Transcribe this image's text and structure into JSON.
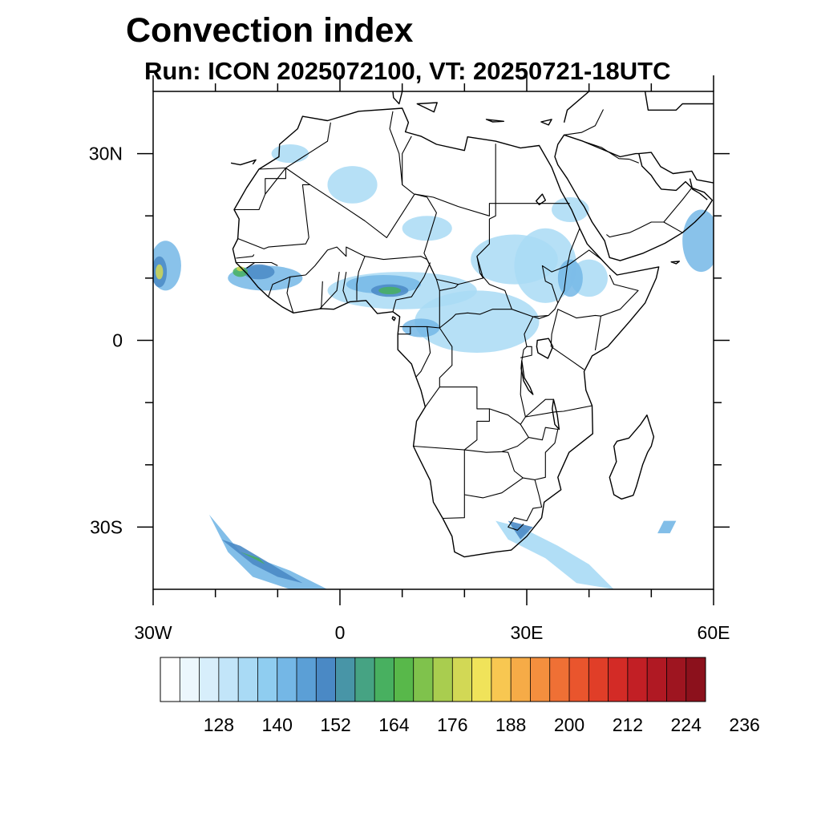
{
  "title": "Convection index",
  "subtitle": "Run: ICON 2025072100,  VT: 20250721-18UTC",
  "map": {
    "lon_range": [
      -30,
      60
    ],
    "lat_range": [
      -40,
      40
    ],
    "lon_ticks": [
      {
        "value": -30,
        "label": "30W"
      },
      {
        "value": 0,
        "label": "0"
      },
      {
        "value": 30,
        "label": "30E"
      },
      {
        "value": 60,
        "label": "60E"
      }
    ],
    "lat_ticks": [
      {
        "value": 30,
        "label": "30N"
      },
      {
        "value": 0,
        "label": "0"
      },
      {
        "value": -30,
        "label": "30S"
      }
    ],
    "minor_lon_ticks": [
      -20,
      -10,
      10,
      20,
      40,
      50
    ],
    "minor_lat_ticks": [
      20,
      10,
      -10,
      -20
    ]
  },
  "colorbar": {
    "colors": [
      "#ffffff",
      "#ecf7fd",
      "#d7eefb",
      "#c2e5f9",
      "#a9daf5",
      "#8fcdf0",
      "#74b7e6",
      "#5b9fd6",
      "#4a89c5",
      "#4895a7",
      "#46a383",
      "#48b060",
      "#58b84a",
      "#7fc24c",
      "#a9cd4f",
      "#d2d855",
      "#f0e35a",
      "#f8c751",
      "#f6ab47",
      "#f48f3e",
      "#ef7035",
      "#e9552d",
      "#e03e28",
      "#d32b26",
      "#c21f25",
      "#b01923",
      "#9e1520",
      "#8c111c"
    ],
    "tick_labels": [
      "128",
      "140",
      "152",
      "164",
      "176",
      "188",
      "200",
      "212",
      "224",
      "236"
    ]
  },
  "fields": {
    "levels": [
      "#a9daf5",
      "#74b7e6",
      "#4a89c5",
      "#48b060",
      "#d2d855"
    ],
    "blobs": [
      {
        "lon": 10,
        "lat": 8,
        "rlon": 12,
        "rlat": 3,
        "level": 0
      },
      {
        "lon": 22,
        "lat": 3,
        "rlon": 10,
        "rlat": 5,
        "level": 0
      },
      {
        "lon": 33,
        "lat": 12,
        "rlon": 5,
        "rlat": 6,
        "level": 0
      },
      {
        "lon": 28,
        "lat": 13,
        "rlon": 7,
        "rlat": 4,
        "level": 0
      },
      {
        "lon": 2,
        "lat": 25,
        "rlon": 4,
        "rlat": 3,
        "level": 0
      },
      {
        "lon": 14,
        "lat": 18,
        "rlon": 4,
        "rlat": 2,
        "level": 0
      },
      {
        "lon": -8,
        "lat": 30,
        "rlon": 3,
        "rlat": 1.5,
        "level": 0
      },
      {
        "lon": 40,
        "lat": 10,
        "rlon": 3,
        "rlat": 3,
        "level": 0
      },
      {
        "lon": 37,
        "lat": 21,
        "rlon": 3,
        "rlat": 2,
        "level": 0
      },
      {
        "lon": -12,
        "lat": 10,
        "rlon": 6,
        "rlat": 2,
        "level": 1
      },
      {
        "lon": 7,
        "lat": 9,
        "rlon": 6,
        "rlat": 1.5,
        "level": 1
      },
      {
        "lon": 13,
        "lat": 2,
        "rlon": 3,
        "rlat": 1.5,
        "level": 1
      },
      {
        "lon": 37,
        "lat": 10,
        "rlon": 2,
        "rlat": 3,
        "level": 1
      },
      {
        "lon": 58,
        "lat": 16,
        "rlon": 3,
        "rlat": 5,
        "level": 1
      },
      {
        "lon": -28,
        "lat": 12,
        "rlon": 2.5,
        "rlat": 4,
        "level": 1
      },
      {
        "lon": -13,
        "lat": 11,
        "rlon": 2.5,
        "rlat": 1.2,
        "level": 2
      },
      {
        "lon": 8,
        "lat": 8,
        "rlon": 3,
        "rlat": 1,
        "level": 2
      },
      {
        "lon": -29,
        "lat": 11,
        "rlon": 1.2,
        "rlat": 2.5,
        "level": 2
      },
      {
        "lon": -16,
        "lat": 11,
        "rlon": 1.2,
        "rlat": 0.8,
        "level": 3
      },
      {
        "lon": 8,
        "lat": 8,
        "rlon": 1.8,
        "rlat": 0.6,
        "level": 3
      },
      {
        "lon": -29,
        "lat": 11,
        "rlon": 0.6,
        "rlat": 1.2,
        "level": 4
      },
      {
        "lon": -16,
        "lat": 11.5,
        "rlon": 0.6,
        "rlat": 0.4,
        "level": 4
      }
    ],
    "bands": [
      {
        "pts": [
          [
            -21,
            -28
          ],
          [
            -18,
            -34
          ],
          [
            -14,
            -38
          ],
          [
            -8,
            -40
          ],
          [
            -2,
            -40
          ],
          [
            -8,
            -37
          ],
          [
            -16,
            -34
          ]
        ],
        "level": 1
      },
      {
        "pts": [
          [
            -19,
            -32
          ],
          [
            -14,
            -36
          ],
          [
            -10,
            -38
          ],
          [
            -6,
            -39
          ],
          [
            -11,
            -36
          ],
          [
            -16,
            -33
          ]
        ],
        "level": 2
      },
      {
        "pts": [
          [
            -16,
            -34
          ],
          [
            -12,
            -36
          ],
          [
            -13,
            -35
          ]
        ],
        "level": 3
      },
      {
        "pts": [
          [
            25,
            -29
          ],
          [
            29,
            -30
          ],
          [
            35,
            -33
          ],
          [
            40,
            -36
          ],
          [
            44,
            -40
          ],
          [
            38,
            -39
          ],
          [
            33,
            -35
          ],
          [
            27,
            -32
          ]
        ],
        "level": 0
      },
      {
        "pts": [
          [
            27,
            -29
          ],
          [
            31,
            -30
          ],
          [
            29,
            -32
          ]
        ],
        "level": 2
      },
      {
        "pts": [
          [
            52,
            -29
          ],
          [
            54,
            -29
          ],
          [
            53,
            -31
          ],
          [
            51,
            -31
          ]
        ],
        "level": 1
      }
    ]
  }
}
